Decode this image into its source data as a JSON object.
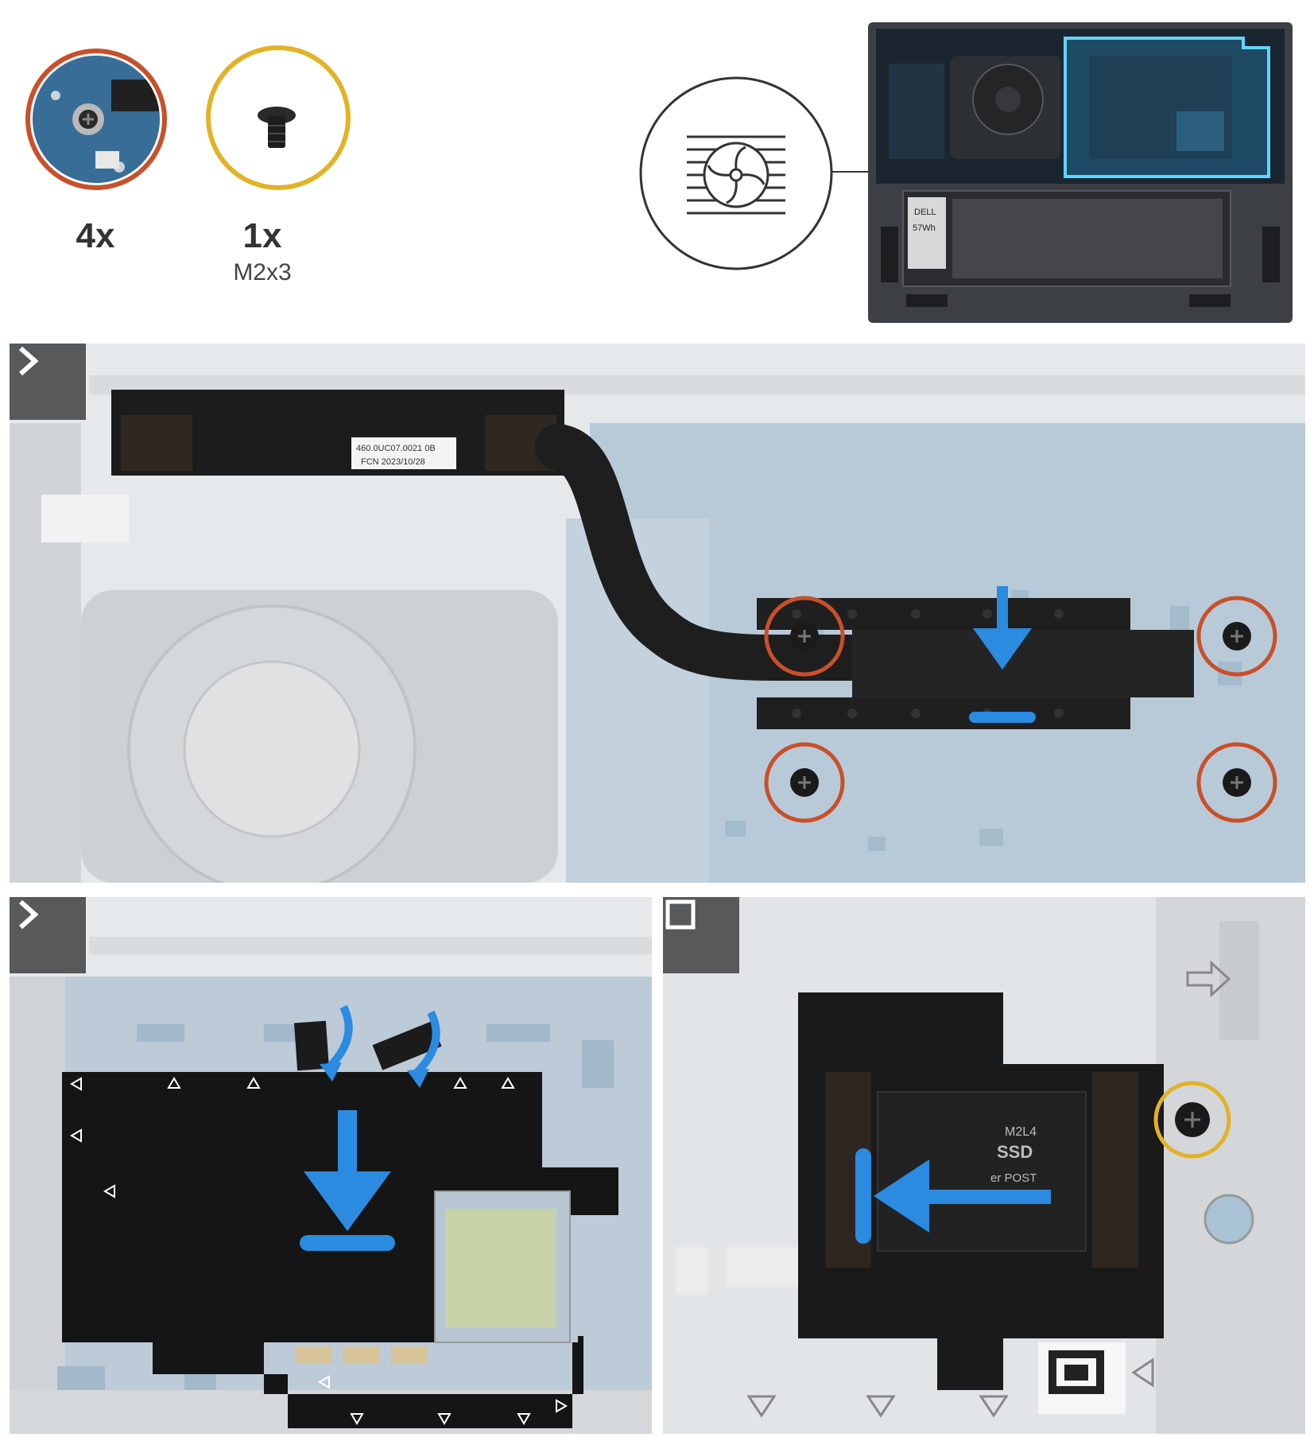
{
  "legend": {
    "screw_callout": {
      "count": "4x"
    },
    "screw_spare": {
      "count": "1x",
      "size": "M2x3"
    }
  },
  "overview": {
    "component_icon": "fan-heatsink-icon",
    "battery_label": "57Wh",
    "brand_label": "DELL"
  },
  "step1": {
    "badge_icon": "chevron-right-icon",
    "heatsink_label_line1": "460.0UC07.0021  0B",
    "heatsink_label_line2": "FCN  2023/10/28"
  },
  "step2": {
    "badge_icon": "chevron-right-icon"
  },
  "step3": {
    "badge_icon": "square-stop-icon",
    "shield_text_1": "M2L4",
    "shield_text_2": "SSD",
    "shield_text_3": "er POST"
  },
  "colors": {
    "callout_orange": "#c8502a",
    "callout_gold": "#e2b227",
    "arrow_blue": "#2a8be0",
    "badge_gray": "#58595b"
  }
}
